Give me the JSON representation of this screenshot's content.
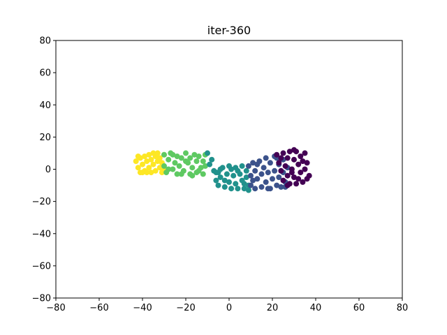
{
  "chart_data": {
    "type": "scatter",
    "title": "iter-360",
    "xlabel": "",
    "ylabel": "",
    "xlim": [
      -80,
      80
    ],
    "ylim": [
      -80,
      80
    ],
    "xticks": [
      -80,
      -60,
      -40,
      -20,
      0,
      20,
      40,
      60,
      80
    ],
    "yticks": [
      -80,
      -60,
      -40,
      -20,
      0,
      20,
      40,
      60,
      80
    ],
    "grid": false,
    "legend": "none",
    "series": [
      {
        "color": "#fde725",
        "points": [
          [
            -43,
            5
          ],
          [
            -42,
            1
          ],
          [
            -41,
            7
          ],
          [
            -41,
            -2
          ],
          [
            -40,
            3
          ],
          [
            -39,
            8
          ],
          [
            -39,
            -1
          ],
          [
            -38,
            5
          ],
          [
            -37,
            1
          ],
          [
            -37,
            9
          ],
          [
            -36,
            -2
          ],
          [
            -36,
            6
          ],
          [
            -35,
            3
          ],
          [
            -34,
            8
          ],
          [
            -34,
            -1
          ],
          [
            -33,
            5
          ],
          [
            -33,
            10
          ],
          [
            -32,
            1
          ],
          [
            -32,
            7
          ],
          [
            -31,
            -2
          ],
          [
            -31,
            4
          ],
          [
            -30,
            9
          ],
          [
            -42,
            8
          ],
          [
            -40,
            -2
          ],
          [
            -38,
            -2
          ],
          [
            -35,
            10
          ],
          [
            -30,
            0
          ]
        ]
      },
      {
        "color": "#5ec962",
        "points": [
          [
            -30,
            9
          ],
          [
            -30,
            2
          ],
          [
            -29,
            -2
          ],
          [
            -28,
            6
          ],
          [
            -27,
            10
          ],
          [
            -26,
            0
          ],
          [
            -25,
            4
          ],
          [
            -24,
            8
          ],
          [
            -24,
            -3
          ],
          [
            -23,
            2
          ],
          [
            -22,
            7
          ],
          [
            -21,
            -1
          ],
          [
            -20,
            10
          ],
          [
            -19,
            4
          ],
          [
            -18,
            -3
          ],
          [
            -18,
            7
          ],
          [
            -17,
            1
          ],
          [
            -16,
            9
          ],
          [
            -15,
            -2
          ],
          [
            -15,
            5
          ],
          [
            -14,
            8
          ],
          [
            -13,
            1
          ],
          [
            -12,
            5
          ],
          [
            -12,
            -3
          ],
          [
            -11,
            9
          ],
          [
            -11,
            2
          ],
          [
            -26,
            9
          ],
          [
            -22,
            -3
          ],
          [
            -20,
            5
          ],
          [
            -14,
            -1
          ],
          [
            -28,
            0
          ],
          [
            -17,
            -4
          ]
        ]
      },
      {
        "color": "#21918c",
        "points": [
          [
            -10,
            10
          ],
          [
            -9,
            3
          ],
          [
            -8,
            6
          ],
          [
            -7,
            -1
          ],
          [
            -6,
            -2
          ],
          [
            -6,
            -7
          ],
          [
            -5,
            -10
          ],
          [
            -4,
            -5
          ],
          [
            -4,
            0
          ],
          [
            -3,
            1
          ],
          [
            -2,
            -11
          ],
          [
            -1,
            -3
          ],
          [
            0,
            2
          ],
          [
            0,
            -8
          ],
          [
            1,
            -12
          ],
          [
            2,
            -4
          ],
          [
            3,
            1
          ],
          [
            3,
            -9
          ],
          [
            4,
            -12
          ],
          [
            5,
            -3
          ],
          [
            6,
            2
          ],
          [
            6,
            -7
          ],
          [
            7,
            -12
          ],
          [
            8,
            -1
          ],
          [
            8,
            -5
          ],
          [
            9,
            -10
          ],
          [
            9,
            -13
          ],
          [
            -2,
            -7
          ],
          [
            1,
            0
          ],
          [
            4,
            -1
          ],
          [
            7,
            -9
          ],
          [
            -5,
            -2
          ]
        ]
      },
      {
        "color": "#3b528b",
        "points": [
          [
            9,
            2
          ],
          [
            10,
            -4
          ],
          [
            10,
            -10
          ],
          [
            11,
            4
          ],
          [
            12,
            -1
          ],
          [
            12,
            -12
          ],
          [
            13,
            -6
          ],
          [
            14,
            5
          ],
          [
            15,
            -3
          ],
          [
            15,
            -11
          ],
          [
            16,
            1
          ],
          [
            17,
            -8
          ],
          [
            17,
            7
          ],
          [
            18,
            -2
          ],
          [
            19,
            -12
          ],
          [
            19,
            4
          ],
          [
            20,
            -6
          ],
          [
            21,
            8
          ],
          [
            21,
            -1
          ],
          [
            22,
            -10
          ],
          [
            23,
            3
          ],
          [
            23,
            -5
          ],
          [
            24,
            -11
          ],
          [
            25,
            6
          ],
          [
            25,
            -2
          ],
          [
            26,
            -8
          ],
          [
            27,
            1
          ],
          [
            13,
            3
          ],
          [
            18,
            -12
          ],
          [
            22,
            7
          ],
          [
            26,
            -11
          ],
          [
            11,
            -7
          ]
        ]
      },
      {
        "color": "#440154",
        "points": [
          [
            22,
            9
          ],
          [
            23,
            4
          ],
          [
            24,
            -1
          ],
          [
            25,
            10
          ],
          [
            25,
            -7
          ],
          [
            26,
            2
          ],
          [
            27,
            7
          ],
          [
            27,
            -4
          ],
          [
            28,
            11
          ],
          [
            28,
            -9
          ],
          [
            29,
            0
          ],
          [
            30,
            6
          ],
          [
            30,
            -5
          ],
          [
            31,
            11
          ],
          [
            31,
            -9
          ],
          [
            32,
            3
          ],
          [
            33,
            8
          ],
          [
            33,
            -2
          ],
          [
            34,
            -8
          ],
          [
            34,
            5
          ],
          [
            35,
            0
          ],
          [
            35,
            10
          ],
          [
            36,
            -6
          ],
          [
            36,
            4
          ],
          [
            37,
            -4
          ],
          [
            24,
            7
          ],
          [
            29,
            -2
          ],
          [
            32,
            -6
          ],
          [
            30,
            12
          ],
          [
            27,
            -10
          ]
        ]
      }
    ]
  }
}
